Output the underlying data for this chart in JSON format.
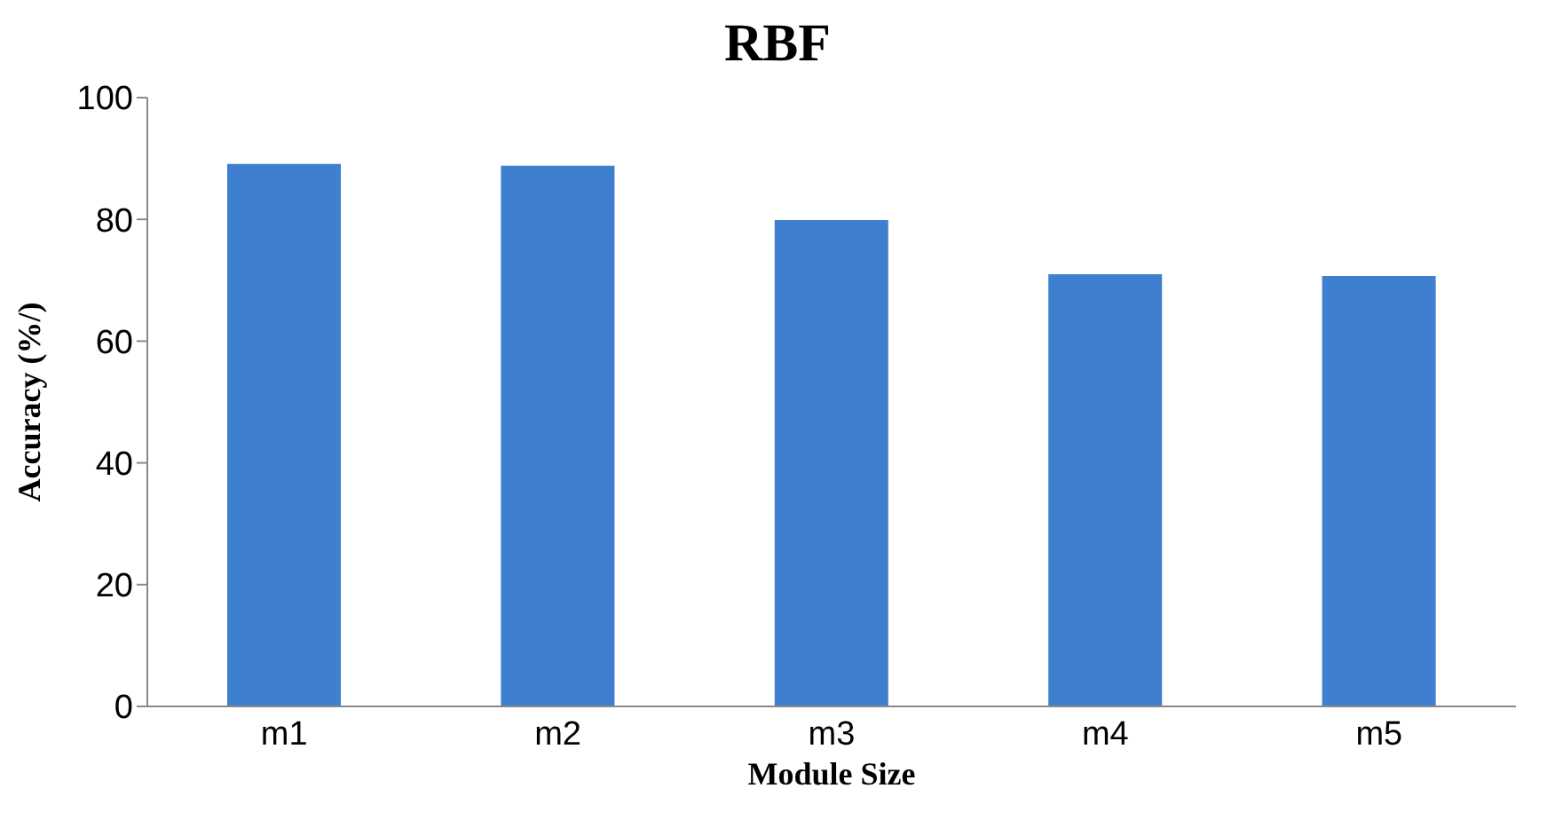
{
  "chart_data": {
    "type": "bar",
    "title": "RBF",
    "xlabel": "Module Size",
    "ylabel": "Accuracy (%/)",
    "categories": [
      "m1",
      "m2",
      "m3",
      "m4",
      "m5"
    ],
    "values": [
      89.1,
      88.8,
      79.9,
      71.0,
      70.7
    ],
    "color": "#3f7fd0",
    "ylim": [
      0,
      100
    ],
    "yticks": [
      0,
      20,
      40,
      60,
      80,
      100
    ],
    "grid": false,
    "legend": false
  }
}
